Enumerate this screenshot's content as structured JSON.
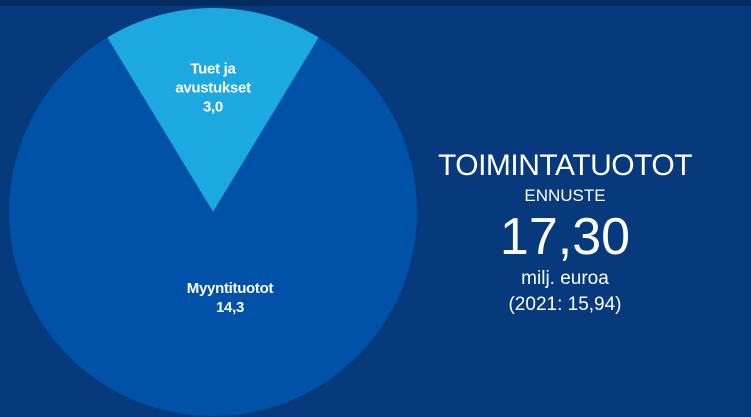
{
  "chart_data": {
    "type": "pie",
    "categories": [
      "Tuet ja avustukset",
      "Myyntituotot"
    ],
    "values": [
      3.0,
      14.3
    ],
    "value_labels": [
      "3,0",
      "14,3"
    ],
    "colors": [
      "#1ba9df",
      "#0052a8"
    ],
    "title": "TOIMINTATUOTOT",
    "subtitle": "ENNUSTE",
    "annotations": [
      "17,30",
      "milj. euroa",
      "(2021: 15,94)"
    ]
  }
}
